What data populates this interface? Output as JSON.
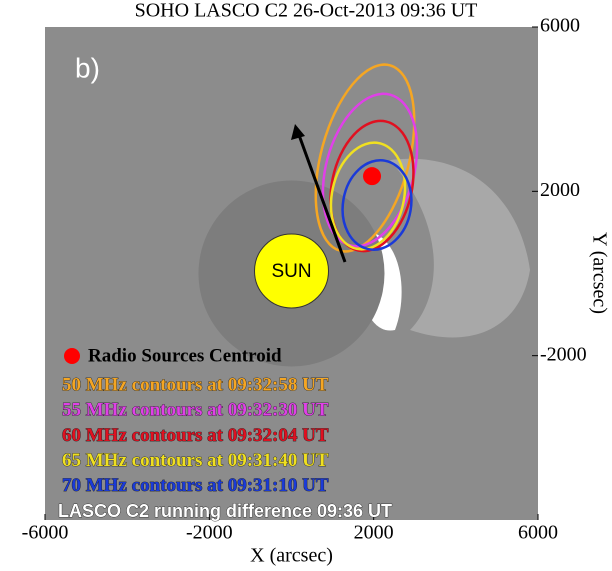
{
  "chart_data": {
    "type": "scatter",
    "title": "SOHO LASCO C2 26-Oct-2013 09:36 UT",
    "x_label": "X (arcsec)",
    "y_label": "Y (arcsec)",
    "xlim": [
      -6000,
      6000
    ],
    "ylim": [
      -6000,
      6000
    ],
    "xticks": [
      -6000,
      -2000,
      2000,
      6000
    ],
    "yticks": [
      6000,
      2000,
      -2000
    ],
    "panel_label": "b)",
    "sun_label": "SUN",
    "series": [
      {
        "name": "Radio Sources Centroid",
        "color": "#ff0000",
        "x": [
          1960
        ],
        "y": [
          2370
        ]
      }
    ],
    "contour_legend": [
      {
        "text": "50 MHz contours at 09:32:58 UT",
        "color": "#f5a623"
      },
      {
        "text": "55 MHz contours at 09:32:30 UT",
        "color": "#e040e8"
      },
      {
        "text": "60 MHz contours at 09:32:04 UT",
        "color": "#e01020"
      },
      {
        "text": "65 MHz contours at 09:31:40 UT",
        "color": "#f0e020"
      },
      {
        "text": "70 MHz contours at 09:31:10 UT",
        "color": "#1a3ad8"
      },
      {
        "text": "LASCO C2 running difference 09:36 UT",
        "color": "#ffffff"
      }
    ]
  }
}
